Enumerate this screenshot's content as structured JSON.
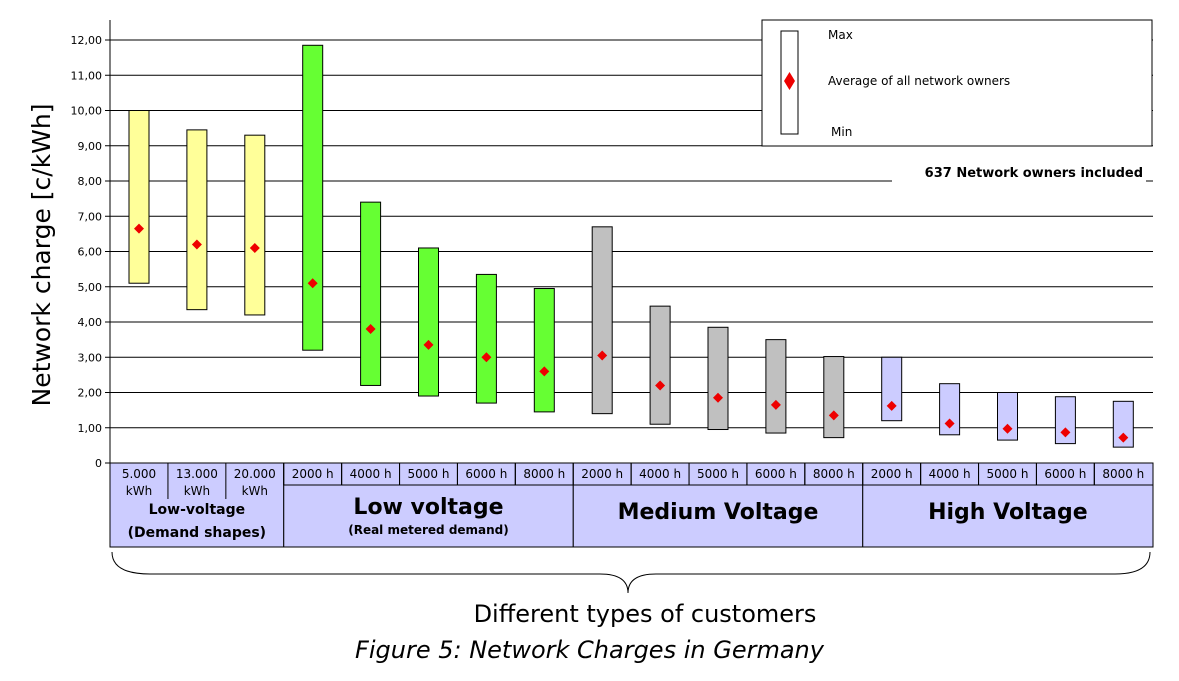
{
  "caption": "Figure 5: Network Charges in Germany",
  "chart_data": {
    "type": "range-bar",
    "ylabel": "Network charge [c/kWh]",
    "xlabel": "Different types of customers",
    "ylim": [
      0,
      12.5
    ],
    "yticks": [
      "0",
      "1,00",
      "2,00",
      "3,00",
      "4,00",
      "5,00",
      "6,00",
      "7,00",
      "8,00",
      "9,00",
      "10,00",
      "11,00",
      "12,00"
    ],
    "grid": true,
    "annotation": "637  Network owners included",
    "legend": {
      "position": "top-right",
      "max_label": "Max",
      "avg_label": "Average of all network owners",
      "min_label": "Min"
    },
    "groups": [
      {
        "line1": "Low-voltage",
        "line2": "(Demand shapes)",
        "color": "#ffff99",
        "bar_indices": [
          0,
          1,
          2
        ]
      },
      {
        "line1": "Low voltage",
        "line2": "(Real metered demand)",
        "color": "#66ff33",
        "bar_indices": [
          3,
          4,
          5,
          6,
          7
        ]
      },
      {
        "line1": "Medium Voltage",
        "line2": "",
        "color": "#c0c0c0",
        "bar_indices": [
          8,
          9,
          10,
          11,
          12
        ]
      },
      {
        "line1": "High Voltage",
        "line2": "",
        "color": "#ccccff",
        "bar_indices": [
          13,
          14,
          15,
          16,
          17
        ]
      }
    ],
    "bars": [
      {
        "label1": "5.000",
        "label2": "kWh",
        "min": 5.1,
        "max": 10.0,
        "avg": 6.65
      },
      {
        "label1": "13.000",
        "label2": "kWh",
        "min": 4.35,
        "max": 9.45,
        "avg": 6.2
      },
      {
        "label1": "20.000",
        "label2": "kWh",
        "min": 4.2,
        "max": 9.3,
        "avg": 6.1
      },
      {
        "label1": "2000 h",
        "label2": "",
        "min": 3.2,
        "max": 11.85,
        "avg": 5.1
      },
      {
        "label1": "4000 h",
        "label2": "",
        "min": 2.2,
        "max": 7.4,
        "avg": 3.8
      },
      {
        "label1": "5000 h",
        "label2": "",
        "min": 1.9,
        "max": 6.1,
        "avg": 3.35
      },
      {
        "label1": "6000 h",
        "label2": "",
        "min": 1.7,
        "max": 5.35,
        "avg": 3.0
      },
      {
        "label1": "8000 h",
        "label2": "",
        "min": 1.45,
        "max": 4.95,
        "avg": 2.6
      },
      {
        "label1": "2000 h",
        "label2": "",
        "min": 1.4,
        "max": 6.7,
        "avg": 3.05
      },
      {
        "label1": "4000 h",
        "label2": "",
        "min": 1.1,
        "max": 4.45,
        "avg": 2.2
      },
      {
        "label1": "5000 h",
        "label2": "",
        "min": 0.95,
        "max": 3.85,
        "avg": 1.85
      },
      {
        "label1": "6000 h",
        "label2": "",
        "min": 0.85,
        "max": 3.5,
        "avg": 1.65
      },
      {
        "label1": "8000 h",
        "label2": "",
        "min": 0.72,
        "max": 3.02,
        "avg": 1.35
      },
      {
        "label1": "2000 h",
        "label2": "",
        "min": 1.2,
        "max": 3.0,
        "avg": 1.62
      },
      {
        "label1": "4000 h",
        "label2": "",
        "min": 0.8,
        "max": 2.25,
        "avg": 1.12
      },
      {
        "label1": "5000 h",
        "label2": "",
        "min": 0.65,
        "max": 2.0,
        "avg": 0.97
      },
      {
        "label1": "6000 h",
        "label2": "",
        "min": 0.55,
        "max": 1.88,
        "avg": 0.87
      },
      {
        "label1": "8000 h",
        "label2": "",
        "min": 0.45,
        "max": 1.75,
        "avg": 0.72
      }
    ],
    "colors": {
      "avg_marker": "#ee0000",
      "legend_box": "#ffffff",
      "axis": "#000000"
    }
  }
}
